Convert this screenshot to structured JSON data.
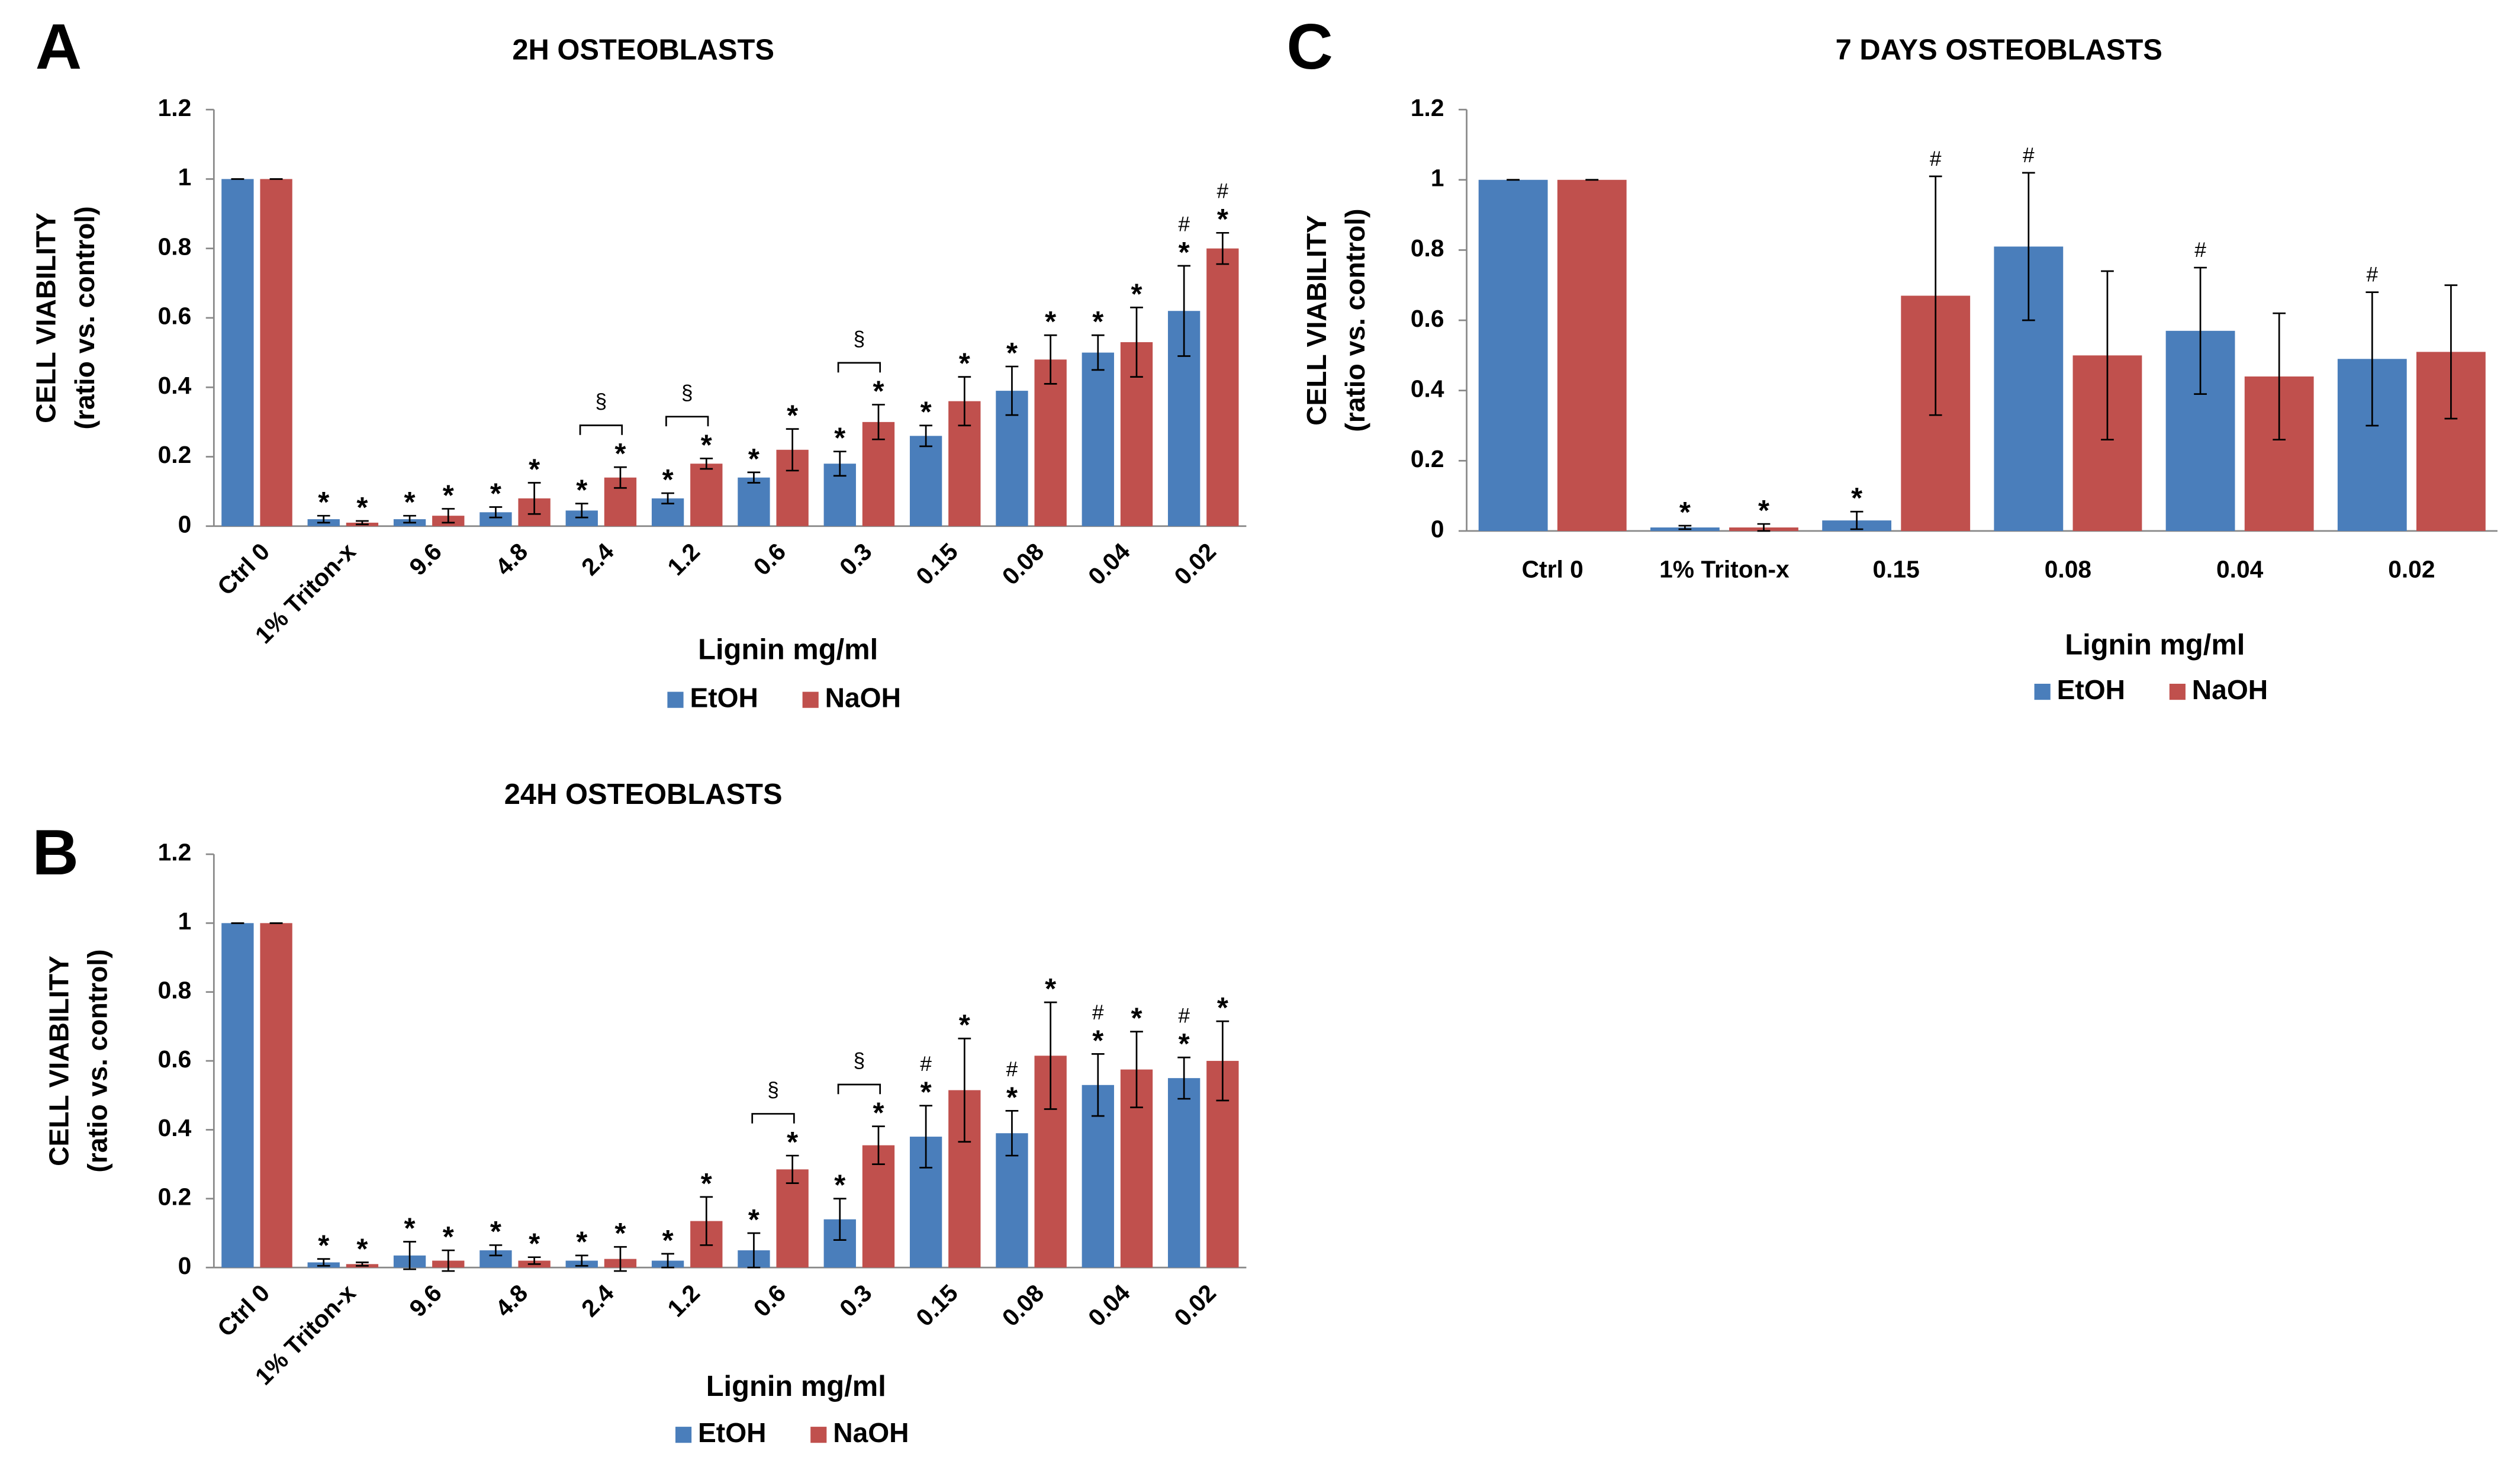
{
  "chart_data": [
    {
      "type": "bar",
      "panel": "A",
      "title": "2H OSTEOBLASTS",
      "y_label": [
        "CELL VIABILITY",
        "(ratio vs. control)"
      ],
      "x_label": "Lignin mg/ml",
      "categories": [
        "Ctrl 0",
        "1% Triton-x",
        "9.6",
        "4.8",
        "2.4",
        "1.2",
        "0.6",
        "0.3",
        "0.15",
        "0.08",
        "0.04",
        "0.02"
      ],
      "series": [
        {
          "name": "EtOH",
          "color": "#4a7ebb",
          "values": [
            1,
            0.02,
            0.02,
            0.04,
            0.045,
            0.08,
            0.14,
            0.18,
            0.26,
            0.39,
            0.5,
            0.62
          ],
          "errors": [
            0,
            0.01,
            0.01,
            0.015,
            0.02,
            0.015,
            0.015,
            0.035,
            0.03,
            0.07,
            0.05,
            0.13
          ],
          "annotations": [
            null,
            [
              "*"
            ],
            [
              "*"
            ],
            [
              "*"
            ],
            [
              "*"
            ],
            [
              "*"
            ],
            [
              "*"
            ],
            [
              "*"
            ],
            [
              "*"
            ],
            [
              "*"
            ],
            [
              "*"
            ],
            [
              "#",
              "*"
            ]
          ]
        },
        {
          "name": "NaOH",
          "color": "#c0504d",
          "values": [
            1,
            0.01,
            0.03,
            0.08,
            0.14,
            0.18,
            0.22,
            0.3,
            0.36,
            0.48,
            0.53,
            0.8
          ],
          "errors": [
            0,
            0.005,
            0.02,
            0.045,
            0.03,
            0.015,
            0.06,
            0.05,
            0.07,
            0.07,
            0.1,
            0.045
          ],
          "annotations": [
            null,
            [
              "*"
            ],
            [
              "*"
            ],
            [
              "*"
            ],
            [
              "*"
            ],
            [
              "*"
            ],
            [
              "*"
            ],
            [
              "*"
            ],
            [
              "*"
            ],
            [
              "*"
            ],
            [
              "*"
            ],
            [
              "#",
              "*"
            ]
          ]
        }
      ],
      "brackets": [
        {
          "category": "2.4",
          "label": "§"
        },
        {
          "category": "1.2",
          "label": "§"
        },
        {
          "category": "0.3",
          "label": "§"
        }
      ],
      "ylim": [
        0,
        1.2
      ],
      "yticks": [
        0,
        0.2,
        0.4,
        0.6,
        0.8,
        1,
        1.2
      ],
      "grid": false,
      "legend": "bottom"
    },
    {
      "type": "bar",
      "panel": "B",
      "title": "24H OSTEOBLASTS",
      "y_label": [
        "CELL VIABILITY",
        "(ratio vs. control)"
      ],
      "x_label": "Lignin mg/ml",
      "categories": [
        "Ctrl 0",
        "1% Triton-x",
        "9.6",
        "4.8",
        "2.4",
        "1.2",
        "0.6",
        "0.3",
        "0.15",
        "0.08",
        "0.04",
        "0.02"
      ],
      "series": [
        {
          "name": "EtOH",
          "color": "#4a7ebb",
          "values": [
            1,
            0.015,
            0.035,
            0.05,
            0.02,
            0.02,
            0.05,
            0.14,
            0.38,
            0.39,
            0.53,
            0.55
          ],
          "errors": [
            0,
            0.01,
            0.04,
            0.015,
            0.015,
            0.02,
            0.05,
            0.06,
            0.09,
            0.065,
            0.09,
            0.06
          ],
          "annotations": [
            null,
            [
              "*"
            ],
            [
              "*"
            ],
            [
              "*"
            ],
            [
              "*"
            ],
            [
              "*"
            ],
            [
              "*"
            ],
            [
              "*"
            ],
            [
              "#",
              "*"
            ],
            [
              "#",
              "*"
            ],
            [
              "#",
              "*"
            ],
            [
              "#",
              "*"
            ]
          ]
        },
        {
          "name": "NaOH",
          "color": "#c0504d",
          "values": [
            1,
            0.01,
            0.02,
            0.02,
            0.025,
            0.135,
            0.285,
            0.355,
            0.515,
            0.615,
            0.575,
            0.6
          ],
          "errors": [
            0,
            0.005,
            0.03,
            0.01,
            0.035,
            0.07,
            0.04,
            0.055,
            0.15,
            0.155,
            0.11,
            0.115
          ],
          "annotations": [
            null,
            [
              "*"
            ],
            [
              "*"
            ],
            [
              "*"
            ],
            [
              "*"
            ],
            [
              "*"
            ],
            [
              "*"
            ],
            [
              "*"
            ],
            [
              "*"
            ],
            [
              "*"
            ],
            [
              "*"
            ],
            [
              "*"
            ]
          ]
        }
      ],
      "brackets": [
        {
          "category": "0.6",
          "label": "§"
        },
        {
          "category": "0.3",
          "label": "§"
        }
      ],
      "ylim": [
        0,
        1.2
      ],
      "yticks": [
        0,
        0.2,
        0.4,
        0.6,
        0.8,
        1,
        1.2
      ],
      "grid": false,
      "legend": "bottom"
    },
    {
      "type": "bar",
      "panel": "C",
      "title": "7 DAYS OSTEOBLASTS",
      "y_label": [
        "CELL VIABILITY",
        "(ratio vs. control)"
      ],
      "x_label": "Lignin mg/ml",
      "categories": [
        "Ctrl 0",
        "1% Triton-x",
        "0.15",
        "0.08",
        "0.04",
        "0.02"
      ],
      "series": [
        {
          "name": "EtOH",
          "color": "#4a7ebb",
          "values": [
            1,
            0.01,
            0.03,
            0.81,
            0.57,
            0.49
          ],
          "errors": [
            0,
            0.005,
            0.025,
            0.21,
            0.18,
            0.19
          ],
          "annotations": [
            null,
            [
              "*"
            ],
            [
              "*"
            ],
            [
              "#"
            ],
            [
              "#"
            ],
            [
              "#"
            ]
          ]
        },
        {
          "name": "NaOH",
          "color": "#c0504d",
          "values": [
            1,
            0.01,
            0.67,
            0.5,
            0.44,
            0.51
          ],
          "errors": [
            0,
            0.01,
            0.34,
            0.24,
            0.18,
            0.19
          ],
          "annotations": [
            null,
            [
              "*"
            ],
            [
              "#"
            ],
            null,
            null,
            null
          ]
        }
      ],
      "ylim": [
        0,
        1.2
      ],
      "yticks": [
        0,
        0.2,
        0.4,
        0.6,
        0.8,
        1,
        1.2
      ],
      "grid": false,
      "legend": "bottom"
    }
  ]
}
